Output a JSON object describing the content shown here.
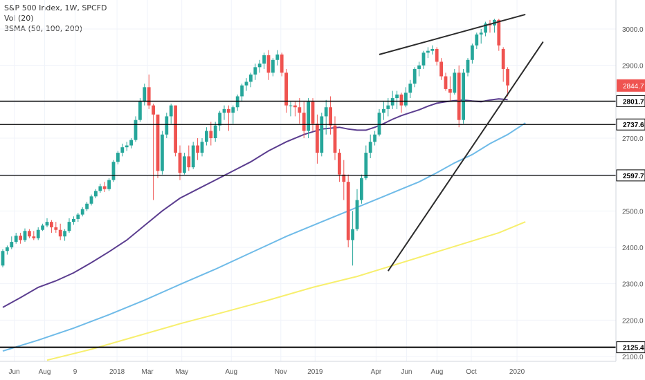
{
  "legend": {
    "title": "S&P 500 Index, 1W, SPCFD",
    "volume": "Vol (20)",
    "sma": "3SMA (50, 100, 200)"
  },
  "colors": {
    "up": "#26a69a",
    "down": "#ef5350",
    "sma50": "#5b3d8f",
    "sma100": "#6fbbe8",
    "sma200": "#f7ef6e",
    "levels": "#000000",
    "trend": "#2b2b2b",
    "price_tag_bg": "#ef5350"
  },
  "chart_data": {
    "type": "candlestick",
    "ylim": [
      2090,
      3050
    ],
    "y_ticks": [
      2100,
      2200,
      2300,
      2400,
      2500,
      2600,
      2700,
      2800,
      2900,
      3000
    ],
    "x_labels": [
      {
        "label": "Jun",
        "w": 3
      },
      {
        "label": "Aug",
        "w": 11
      },
      {
        "label": "9",
        "w": 19
      },
      {
        "label": "2018",
        "w": 30
      },
      {
        "label": "Mar",
        "w": 38
      },
      {
        "label": "May",
        "w": 47
      },
      {
        "label": "Aug",
        "w": 60
      },
      {
        "label": "Nov",
        "w": 73
      },
      {
        "label": "2019",
        "w": 82
      },
      {
        "label": "Apr",
        "w": 98
      },
      {
        "label": "Jun",
        "w": 106
      },
      {
        "label": "Aug",
        "w": 114
      },
      {
        "label": "Oct",
        "w": 123
      },
      {
        "label": "2020",
        "w": 135
      }
    ],
    "candles": [
      [
        2350,
        2395,
        2345,
        2390
      ],
      [
        2390,
        2405,
        2380,
        2400
      ],
      [
        2400,
        2430,
        2395,
        2415
      ],
      [
        2415,
        2440,
        2410,
        2432
      ],
      [
        2432,
        2440,
        2410,
        2420
      ],
      [
        2420,
        2452,
        2415,
        2445
      ],
      [
        2445,
        2450,
        2425,
        2430
      ],
      [
        2430,
        2445,
        2420,
        2425
      ],
      [
        2425,
        2455,
        2420,
        2448
      ],
      [
        2448,
        2465,
        2445,
        2460
      ],
      [
        2460,
        2480,
        2455,
        2470
      ],
      [
        2470,
        2475,
        2440,
        2455
      ],
      [
        2455,
        2470,
        2440,
        2448
      ],
      [
        2448,
        2465,
        2420,
        2430
      ],
      [
        2430,
        2450,
        2418,
        2445
      ],
      [
        2445,
        2480,
        2440,
        2470
      ],
      [
        2470,
        2485,
        2462,
        2478
      ],
      [
        2478,
        2495,
        2470,
        2490
      ],
      [
        2490,
        2510,
        2485,
        2505
      ],
      [
        2505,
        2525,
        2500,
        2520
      ],
      [
        2520,
        2545,
        2515,
        2540
      ],
      [
        2540,
        2560,
        2535,
        2555
      ],
      [
        2555,
        2575,
        2550,
        2568
      ],
      [
        2568,
        2580,
        2552,
        2560
      ],
      [
        2560,
        2590,
        2555,
        2585
      ],
      [
        2585,
        2640,
        2580,
        2635
      ],
      [
        2635,
        2665,
        2628,
        2660
      ],
      [
        2660,
        2685,
        2650,
        2675
      ],
      [
        2675,
        2690,
        2665,
        2680
      ],
      [
        2680,
        2700,
        2672,
        2695
      ],
      [
        2695,
        2760,
        2690,
        2750
      ],
      [
        2750,
        2810,
        2745,
        2800
      ],
      [
        2800,
        2850,
        2790,
        2840
      ],
      [
        2840,
        2875,
        2780,
        2790
      ],
      [
        2790,
        2795,
        2530,
        2765
      ],
      [
        2765,
        2760,
        2590,
        2610
      ],
      [
        2610,
        2720,
        2600,
        2710
      ],
      [
        2710,
        2770,
        2700,
        2760
      ],
      [
        2760,
        2795,
        2740,
        2790
      ],
      [
        2790,
        2790,
        2650,
        2660
      ],
      [
        2660,
        2680,
        2585,
        2605
      ],
      [
        2605,
        2660,
        2600,
        2650
      ],
      [
        2650,
        2680,
        2610,
        2620
      ],
      [
        2620,
        2690,
        2615,
        2680
      ],
      [
        2680,
        2700,
        2640,
        2660
      ],
      [
        2660,
        2700,
        2650,
        2690
      ],
      [
        2690,
        2730,
        2680,
        2720
      ],
      [
        2720,
        2745,
        2680,
        2700
      ],
      [
        2700,
        2745,
        2690,
        2735
      ],
      [
        2735,
        2775,
        2720,
        2770
      ],
      [
        2770,
        2790,
        2750,
        2780
      ],
      [
        2780,
        2790,
        2720,
        2770
      ],
      [
        2770,
        2790,
        2740,
        2785
      ],
      [
        2785,
        2820,
        2775,
        2815
      ],
      [
        2815,
        2850,
        2800,
        2845
      ],
      [
        2845,
        2865,
        2830,
        2855
      ],
      [
        2855,
        2880,
        2840,
        2875
      ],
      [
        2875,
        2905,
        2860,
        2895
      ],
      [
        2895,
        2915,
        2880,
        2905
      ],
      [
        2905,
        2935,
        2890,
        2928
      ],
      [
        2928,
        2942,
        2860,
        2880
      ],
      [
        2880,
        2920,
        2870,
        2915
      ],
      [
        2915,
        2942,
        2900,
        2930
      ],
      [
        2930,
        2935,
        2870,
        2880
      ],
      [
        2880,
        2890,
        2770,
        2790
      ],
      [
        2790,
        2800,
        2760,
        2790
      ],
      [
        2790,
        2800,
        2760,
        2785
      ],
      [
        2785,
        2810,
        2740,
        2770
      ],
      [
        2770,
        2800,
        2700,
        2720
      ],
      [
        2720,
        2810,
        2700,
        2800
      ],
      [
        2800,
        2810,
        2720,
        2740
      ],
      [
        2740,
        2765,
        2630,
        2660
      ],
      [
        2660,
        2770,
        2650,
        2760
      ],
      [
        2760,
        2805,
        2710,
        2785
      ],
      [
        2785,
        2815,
        2710,
        2735
      ],
      [
        2735,
        2760,
        2640,
        2660
      ],
      [
        2660,
        2670,
        2580,
        2600
      ],
      [
        2600,
        2640,
        2530,
        2580
      ],
      [
        2580,
        2600,
        2400,
        2420
      ],
      [
        2420,
        2500,
        2350,
        2450
      ],
      [
        2450,
        2560,
        2445,
        2530
      ],
      [
        2530,
        2600,
        2520,
        2590
      ],
      [
        2590,
        2680,
        2585,
        2660
      ],
      [
        2660,
        2710,
        2645,
        2690
      ],
      [
        2690,
        2720,
        2680,
        2710
      ],
      [
        2710,
        2780,
        2705,
        2770
      ],
      [
        2770,
        2800,
        2750,
        2780
      ],
      [
        2780,
        2810,
        2760,
        2790
      ],
      [
        2790,
        2830,
        2780,
        2810
      ],
      [
        2810,
        2830,
        2780,
        2820
      ],
      [
        2820,
        2825,
        2770,
        2790
      ],
      [
        2790,
        2840,
        2785,
        2825
      ],
      [
        2825,
        2860,
        2810,
        2850
      ],
      [
        2850,
        2895,
        2840,
        2890
      ],
      [
        2890,
        2910,
        2870,
        2900
      ],
      [
        2900,
        2940,
        2890,
        2935
      ],
      [
        2935,
        2950,
        2920,
        2940
      ],
      [
        2940,
        2955,
        2930,
        2945
      ],
      [
        2945,
        2950,
        2900,
        2910
      ],
      [
        2910,
        2920,
        2860,
        2870
      ],
      [
        2870,
        2880,
        2830,
        2835
      ],
      [
        2835,
        2870,
        2800,
        2825
      ],
      [
        2825,
        2890,
        2820,
        2880
      ],
      [
        2880,
        2900,
        2730,
        2750
      ],
      [
        2750,
        2890,
        2740,
        2880
      ],
      [
        2880,
        2920,
        2870,
        2915
      ],
      [
        2915,
        2960,
        2905,
        2955
      ],
      [
        2955,
        2990,
        2945,
        2985
      ],
      [
        2985,
        3000,
        2960,
        2990
      ],
      [
        2990,
        3020,
        2980,
        3015
      ],
      [
        3015,
        3025,
        2990,
        3010
      ],
      [
        3010,
        3028,
        2990,
        3025
      ],
      [
        3025,
        3028,
        2940,
        2955
      ],
      [
        2945,
        2950,
        2855,
        2890
      ],
      [
        2890,
        2895,
        2815,
        2845
      ]
    ],
    "sma50": [
      [
        0,
        2235
      ],
      [
        4,
        2262
      ],
      [
        8,
        2290
      ],
      [
        12,
        2308
      ],
      [
        16,
        2330
      ],
      [
        20,
        2358
      ],
      [
        24,
        2388
      ],
      [
        28,
        2420
      ],
      [
        32,
        2460
      ],
      [
        36,
        2500
      ],
      [
        40,
        2535
      ],
      [
        44,
        2560
      ],
      [
        48,
        2585
      ],
      [
        52,
        2610
      ],
      [
        56,
        2635
      ],
      [
        60,
        2665
      ],
      [
        64,
        2690
      ],
      [
        68,
        2710
      ],
      [
        72,
        2725
      ],
      [
        76,
        2730
      ],
      [
        78,
        2725
      ],
      [
        80,
        2722
      ],
      [
        82,
        2722
      ],
      [
        84,
        2730
      ],
      [
        86,
        2740
      ],
      [
        88,
        2752
      ],
      [
        90,
        2762
      ],
      [
        92,
        2770
      ],
      [
        94,
        2778
      ],
      [
        96,
        2788
      ],
      [
        98,
        2796
      ],
      [
        100,
        2800
      ],
      [
        102,
        2803
      ],
      [
        104,
        2805
      ],
      [
        106,
        2802
      ],
      [
        108,
        2800
      ],
      [
        110,
        2805
      ],
      [
        112,
        2808
      ],
      [
        114,
        2806
      ]
    ],
    "sma100": [
      [
        0,
        2115
      ],
      [
        8,
        2145
      ],
      [
        16,
        2178
      ],
      [
        24,
        2215
      ],
      [
        32,
        2255
      ],
      [
        40,
        2298
      ],
      [
        48,
        2340
      ],
      [
        56,
        2385
      ],
      [
        64,
        2430
      ],
      [
        72,
        2470
      ],
      [
        78,
        2500
      ],
      [
        82,
        2520
      ],
      [
        86,
        2540
      ],
      [
        90,
        2560
      ],
      [
        94,
        2580
      ],
      [
        98,
        2605
      ],
      [
        102,
        2632
      ],
      [
        106,
        2655
      ],
      [
        110,
        2685
      ],
      [
        114,
        2710
      ],
      [
        118,
        2742
      ]
    ],
    "sma200": [
      [
        10,
        2090
      ],
      [
        20,
        2120
      ],
      [
        30,
        2155
      ],
      [
        40,
        2190
      ],
      [
        50,
        2222
      ],
      [
        60,
        2255
      ],
      [
        70,
        2290
      ],
      [
        80,
        2320
      ],
      [
        88,
        2350
      ],
      [
        96,
        2380
      ],
      [
        104,
        2410
      ],
      [
        112,
        2440
      ],
      [
        118,
        2470
      ]
    ],
    "levels": [
      2801.7,
      2737.6,
      2597.7,
      2125.4
    ],
    "trendlines": [
      {
        "from": [
          85,
          2930
        ],
        "to": [
          118,
          3040
        ]
      },
      {
        "from": [
          87,
          2335
        ],
        "to": [
          122,
          2965
        ]
      }
    ],
    "last_price": 2844.7,
    "level_labels": [
      "2801.7",
      "2737.6",
      "2597.7",
      "2125.4"
    ],
    "last_price_label": "2844.7"
  }
}
